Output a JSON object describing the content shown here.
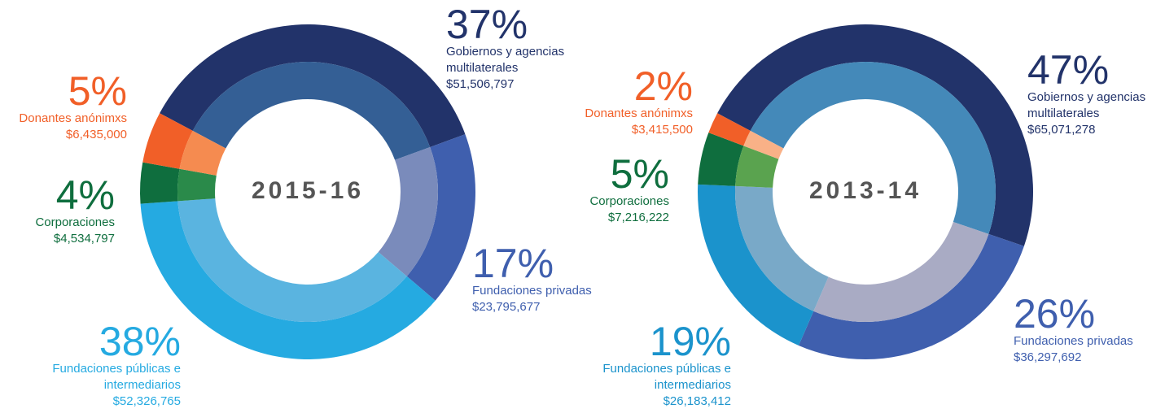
{
  "chart_data": [
    {
      "type": "donut",
      "title": "2015-16",
      "categories": [
        "Gobiernos y agencias multilaterales",
        "Fundaciones privadas",
        "Fundaciones públicas e intermediarios",
        "Corporaciones",
        "Donantes anónimxs"
      ],
      "values": [
        37,
        17,
        38,
        4,
        5
      ],
      "value_labels": [
        "37%",
        "17%",
        "38%",
        "4%",
        "5%"
      ],
      "amounts": [
        "$51,506,797",
        "$23,795,677",
        "$52,326,765",
        "$4,534,797",
        "$6,435,000"
      ],
      "colors": [
        "#22336a",
        "#3f5fae",
        "#25aae1",
        "#0f6e3e",
        "#f15f28"
      ],
      "inner_colors": [
        "#345f95",
        "#7a8bbb",
        "#5ab4e0",
        "#2a8a4a",
        "#f58b50"
      ]
    },
    {
      "type": "donut",
      "title": "2013-14",
      "categories": [
        "Gobiernos y agencias multilaterales",
        "Fundaciones privadas",
        "Fundaciones públicas e intermediarios",
        "Corporaciones",
        "Donantes anónimxs"
      ],
      "values": [
        47,
        26,
        19,
        5,
        2
      ],
      "value_labels": [
        "47%",
        "26%",
        "19%",
        "5%",
        "2%"
      ],
      "amounts": [
        "$65,071,278",
        "$36,297,692",
        "$26,183,412",
        "$7,216,222",
        "$3,415,500"
      ],
      "colors": [
        "#22336a",
        "#3f5fae",
        "#1b93cc",
        "#0f6e3e",
        "#f15f28"
      ],
      "inner_colors": [
        "#4489b9",
        "#a9abc4",
        "#79a9c8",
        "#5aa34f",
        "#f9b187"
      ]
    }
  ]
}
